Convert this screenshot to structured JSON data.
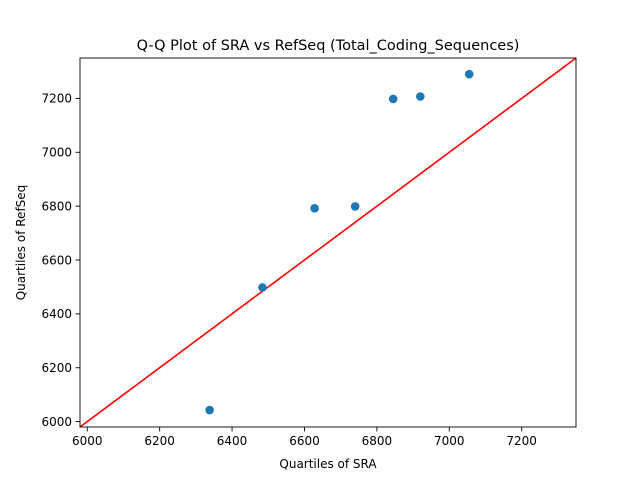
{
  "chart_data": {
    "type": "scatter",
    "title": "Q-Q Plot of SRA vs RefSeq (Total_Coding_Sequences)",
    "xlabel": "Quartiles of SRA",
    "ylabel": "Quartiles of RefSeq",
    "xlim": [
      5980,
      7350
    ],
    "ylim": [
      5980,
      7350
    ],
    "xticks": [
      6000,
      6200,
      6400,
      6600,
      6800,
      7000,
      7200
    ],
    "yticks": [
      6000,
      6200,
      6400,
      6600,
      6800,
      7000,
      7200
    ],
    "grid": false,
    "points": [
      {
        "x": 6338,
        "y": 6043
      },
      {
        "x": 6484,
        "y": 6498
      },
      {
        "x": 6628,
        "y": 6792
      },
      {
        "x": 6740,
        "y": 6799
      },
      {
        "x": 6845,
        "y": 7198
      },
      {
        "x": 6920,
        "y": 7207
      },
      {
        "x": 7055,
        "y": 7290
      }
    ],
    "reference_line": {
      "type": "y=x"
    },
    "colors": {
      "points": "#1f77b4",
      "reference_line": "#ff0000"
    }
  }
}
